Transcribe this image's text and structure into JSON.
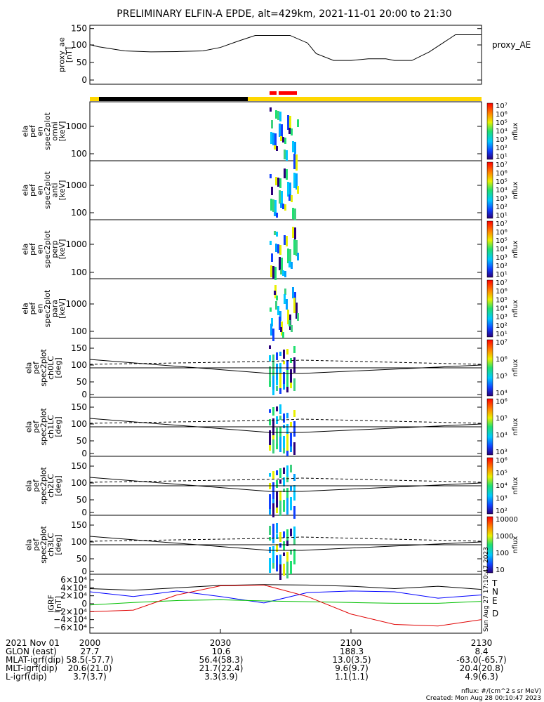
{
  "title": "PRELIMINARY ELFIN-A EPDE, alt=429km, 2021-11-01 20:00 to 21:30",
  "panels": [
    {
      "ylabel": [
        "proxy_ae",
        "[nT]"
      ],
      "ticks": [
        "150",
        "100",
        "50",
        "0"
      ],
      "legend": "proxy_AE"
    },
    {
      "ylabel": [
        "ela",
        "pef",
        "en",
        "spec2plot",
        "omni",
        "[keV]"
      ],
      "ticks": [
        "1000",
        "100"
      ],
      "cbar_unit": "nflux"
    },
    {
      "ylabel": [
        "ela",
        "pef",
        "en",
        "spec2plot",
        "anti",
        "[keV]"
      ],
      "ticks": [
        "1000",
        "100"
      ],
      "cbar_unit": "nflux"
    },
    {
      "ylabel": [
        "ela",
        "pef",
        "en",
        "spec2plot",
        "perp",
        "[keV]"
      ],
      "ticks": [
        "1000",
        "100"
      ],
      "cbar_unit": "nflux"
    },
    {
      "ylabel": [
        "ela",
        "pef",
        "en",
        "spec2plot",
        "para",
        "[keV]"
      ],
      "ticks": [
        "1000",
        "100"
      ],
      "cbar_unit": "nflux"
    },
    {
      "ylabel": [
        "ela",
        "pef",
        "spec2plot",
        "ch0LC",
        "[deg]"
      ],
      "ticks": [
        "150",
        "100",
        "50",
        "0"
      ],
      "cbar_unit": "nflux"
    },
    {
      "ylabel": [
        "ela",
        "pef",
        "spec2plot",
        "ch1LC",
        "[deg]"
      ],
      "ticks": [
        "150",
        "100",
        "50",
        "0"
      ],
      "cbar_unit": "nflux"
    },
    {
      "ylabel": [
        "ela",
        "pef",
        "spec2plot",
        "ch2LC",
        "[deg]"
      ],
      "ticks": [
        "150",
        "100",
        "50",
        "0"
      ],
      "cbar_unit": "nflux"
    },
    {
      "ylabel": [
        "ela",
        "pef",
        "spec2plot",
        "ch3LC",
        "[deg]"
      ],
      "ticks": [
        "150",
        "100",
        "50",
        "0"
      ],
      "cbar_unit": "nflux"
    },
    {
      "ylabel": [
        "IGRF",
        "[nT]"
      ],
      "ticks": [
        "6×10⁴",
        "4×10⁴",
        "2×10⁴",
        "0",
        "−2×10⁴",
        "−4×10⁴",
        "−6×10⁴"
      ],
      "legend": [
        "T",
        "N",
        "E",
        "D"
      ]
    }
  ],
  "cbars": [
    [
      "10⁷",
      "10⁶",
      "10⁵",
      "10⁴",
      "10³",
      "10²",
      "10¹"
    ],
    [
      "10⁷",
      "10⁶",
      "10⁵",
      "10⁴",
      "10³",
      "10²",
      "10¹"
    ],
    [
      "10⁷",
      "10⁶",
      "10⁵",
      "10⁴",
      "10³",
      "10²",
      "10¹"
    ],
    [
      "10⁷",
      "10⁶",
      "10⁵",
      "10⁴",
      "10³",
      "10²",
      "10¹"
    ],
    [
      "10⁷",
      "10⁶",
      "10⁵",
      "10⁴"
    ],
    [
      "10⁶",
      "10⁵",
      "10⁴",
      "10³"
    ],
    [
      "10⁶",
      "10⁵",
      "10⁴",
      "10³",
      "10²"
    ],
    [
      "10000",
      "1000",
      "100",
      "10"
    ]
  ],
  "xaxis": {
    "ticks": [
      "2000",
      "2030",
      "2100",
      "2130"
    ],
    "rows": [
      {
        "label": "2021 Nov 01",
        "vals": [
          "",
          "",
          "",
          ""
        ]
      },
      {
        "label": "GLON (east)",
        "vals": [
          "27.7",
          "10.6",
          "188.3",
          "8.4"
        ]
      },
      {
        "label": "MLAT-igrf(dip)",
        "vals": [
          "58.5(-57.7)",
          "56.4(58.3)",
          "13.0(3.5)",
          "-63.0(-65.7)"
        ]
      },
      {
        "label": "MLT-igrf(dip)",
        "vals": [
          "20.6(21.0)",
          "21.7(22.4)",
          "9.6(9.7)",
          "20.4(20.8)"
        ]
      },
      {
        "label": "L-igrf(dip)",
        "vals": [
          "3.7(3.7)",
          "3.3(3.9)",
          "1.1(1.1)",
          "4.9(6.3)"
        ]
      }
    ]
  },
  "footer": {
    "units": "nflux: #/(cm^2 s sr MeV)",
    "created": "Created: Mon Aug 28 00:10:47 2023",
    "side": "Sun Aug 27 17:10:47 2023"
  },
  "colors": {
    "T": "#000000",
    "N": "#0000ff",
    "E": "#00c000",
    "D": "#e00000",
    "sunlit": "#ffd700",
    "shadow": "#000000",
    "science": "#ff0000"
  },
  "chart_data": [
    {
      "type": "line",
      "title": "PRELIMINARY ELFIN-A EPDE, alt=429km, 2021-11-01 20:00 to 21:30",
      "xlabel": "",
      "ylabel": "proxy_ae [nT]",
      "ylim": [
        0,
        150
      ],
      "x": [
        0,
        2,
        8,
        14,
        20,
        26,
        30,
        34,
        38,
        42,
        46,
        50,
        52,
        56,
        60,
        64,
        68,
        70,
        74,
        78,
        84,
        88,
        90
      ],
      "series": [
        {
          "name": "proxy_AE",
          "values": [
            103,
            97,
            85,
            82,
            83,
            85,
            95,
            113,
            130,
            130,
            130,
            108,
            77,
            57,
            57,
            62,
            62,
            57,
            57,
            82,
            132,
            132,
            132
          ]
        }
      ]
    },
    {
      "type": "line",
      "xlabel": "",
      "ylabel": "IGRF [nT]",
      "ylim": [
        -60000,
        60000
      ],
      "x": [
        0,
        10,
        20,
        30,
        40,
        50,
        60,
        70,
        80,
        90
      ],
      "series": [
        {
          "name": "T",
          "values": [
            38000,
            34000,
            40000,
            46000,
            48000,
            47000,
            44000,
            38000,
            44000,
            36000
          ]
        },
        {
          "name": "N",
          "values": [
            30000,
            18000,
            32000,
            18000,
            2000,
            28000,
            32000,
            30000,
            14000,
            22000
          ]
        },
        {
          "name": "E",
          "values": [
            -3000,
            3000,
            8000,
            10000,
            7000,
            5000,
            3000,
            1000,
            1000,
            6000
          ]
        },
        {
          "name": "D",
          "values": [
            -20000,
            -16000,
            22000,
            45000,
            47000,
            18000,
            -26000,
            -52000,
            -56000,
            -40000
          ]
        }
      ]
    }
  ]
}
